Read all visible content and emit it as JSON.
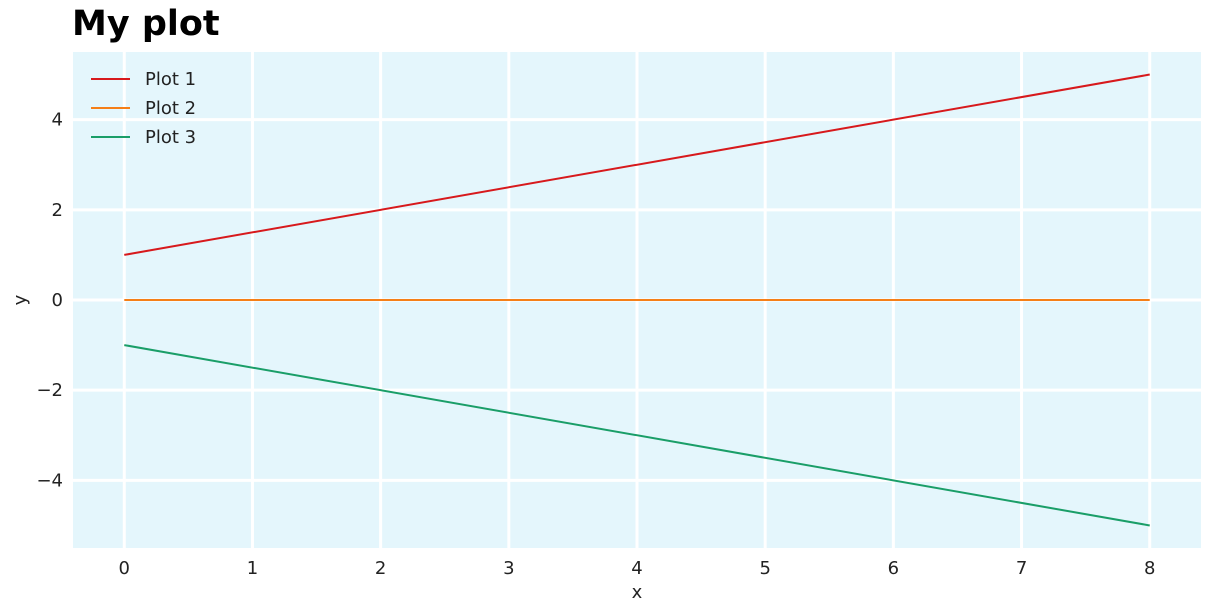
{
  "chart_data": {
    "type": "line",
    "title": "My plot",
    "xlabel": "x",
    "ylabel": "y",
    "xlim": [
      -0.4,
      8.4
    ],
    "ylim": [
      -5.5,
      5.5
    ],
    "xticks": [
      0,
      1,
      2,
      3,
      4,
      5,
      6,
      7,
      8
    ],
    "yticks": [
      -4,
      -2,
      0,
      2,
      4
    ],
    "xtick_labels": [
      "0",
      "1",
      "2",
      "3",
      "4",
      "5",
      "6",
      "7",
      "8"
    ],
    "ytick_labels": [
      "−4",
      "−2",
      "0",
      "2",
      "4"
    ],
    "grid": true,
    "legend_position": "top-left",
    "background_color": "#e4f6fc",
    "series": [
      {
        "name": "Plot 1",
        "color": "#d7191c",
        "x": [
          0,
          8
        ],
        "y": [
          1,
          5
        ]
      },
      {
        "name": "Plot 2",
        "color": "#f57f17",
        "x": [
          0,
          8
        ],
        "y": [
          0,
          0
        ]
      },
      {
        "name": "Plot 3",
        "color": "#1a9e68",
        "x": [
          0,
          8
        ],
        "y": [
          -1,
          -5
        ]
      }
    ]
  }
}
